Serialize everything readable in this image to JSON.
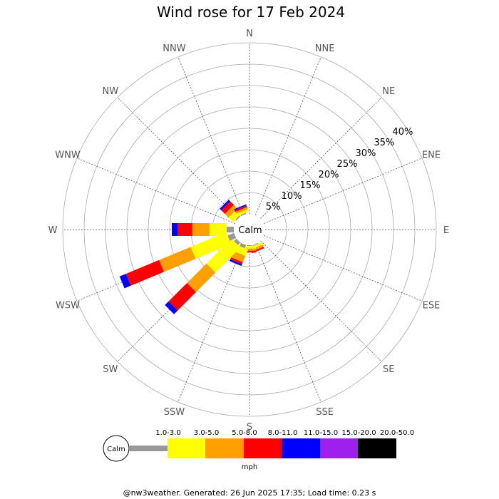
{
  "chart_data": {
    "type": "wind-rose",
    "title": "Wind rose for 17 Feb 2024",
    "directions": [
      "N",
      "NNE",
      "NE",
      "ENE",
      "E",
      "ESE",
      "SE",
      "SSE",
      "S",
      "SSW",
      "SW",
      "WSW",
      "W",
      "WNW",
      "NW",
      "NNW"
    ],
    "ring_values": [
      5,
      10,
      15,
      20,
      25,
      30,
      35,
      40
    ],
    "ring_labels": [
      "5%",
      "10%",
      "15%",
      "20%",
      "25%",
      "30%",
      "35%",
      "40%"
    ],
    "rmax_percent": 40,
    "calm_label": "Calm",
    "unit": "mph",
    "bins": [
      {
        "label": "1.0-3.0",
        "color": "#999999"
      },
      {
        "label": "3.0-5.0",
        "color": "#ffff00"
      },
      {
        "label": "5.0-8.0",
        "color": "#ff9f00"
      },
      {
        "label": "8.0-11.0",
        "color": "#ff0000"
      },
      {
        "label": "11.0-15.0",
        "color": "#0000ff"
      },
      {
        "label": "15.0-20.0",
        "color": "#9f1fef"
      },
      {
        "label": "20.0-50.0",
        "color": "#000000"
      }
    ],
    "series": [
      {
        "direction": "N",
        "values": [
          0,
          0,
          0,
          0,
          0,
          0,
          0
        ]
      },
      {
        "direction": "NNE",
        "values": [
          0,
          0,
          0,
          0,
          0,
          0,
          0
        ]
      },
      {
        "direction": "NE",
        "values": [
          0,
          0,
          0,
          0,
          0,
          0,
          0
        ]
      },
      {
        "direction": "ENE",
        "values": [
          0,
          0,
          0,
          0,
          0,
          0,
          0
        ]
      },
      {
        "direction": "E",
        "values": [
          0,
          0,
          0,
          0,
          0,
          0,
          0
        ]
      },
      {
        "direction": "ESE",
        "values": [
          0,
          0,
          0,
          0,
          0,
          0,
          0
        ]
      },
      {
        "direction": "SE",
        "values": [
          0,
          0,
          0,
          0,
          0,
          0,
          0
        ]
      },
      {
        "direction": "SSE",
        "values": [
          0.2,
          0.6,
          0.5,
          0.4,
          0,
          0,
          0
        ]
      },
      {
        "direction": "S",
        "values": [
          0.2,
          0.6,
          0.5,
          0.4,
          0,
          0,
          0
        ]
      },
      {
        "direction": "SSW",
        "values": [
          0.8,
          1.6,
          1.6,
          0.5,
          0.4,
          0,
          0
        ]
      },
      {
        "direction": "SW",
        "values": [
          0.8,
          8.3,
          6.4,
          6.1,
          1.2,
          0,
          0
        ]
      },
      {
        "direction": "WSW",
        "values": [
          1.6,
          9.0,
          8.0,
          8.4,
          1.6,
          0,
          0
        ]
      },
      {
        "direction": "W",
        "values": [
          1.7,
          4.0,
          4.0,
          3.4,
          1.4,
          0,
          0
        ]
      },
      {
        "direction": "WNW",
        "values": [
          0,
          0,
          0,
          0,
          0,
          0,
          0
        ]
      },
      {
        "direction": "NW",
        "values": [
          0.3,
          1.5,
          1.2,
          1.2,
          0.5,
          0,
          0
        ]
      },
      {
        "direction": "NNW",
        "values": [
          0.3,
          0.6,
          0.5,
          0.4,
          0.3,
          0,
          0
        ]
      }
    ]
  },
  "footer": "@nw3weather. Generated: 26 Jun 2025 17:35; Load time: 0.23 s"
}
